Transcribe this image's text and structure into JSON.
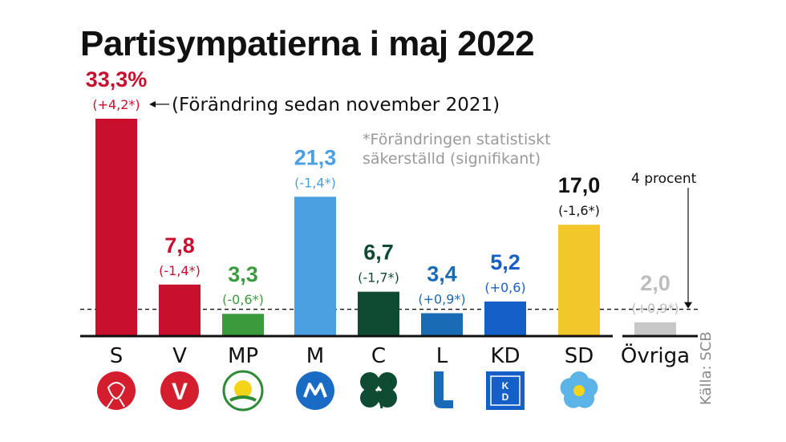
{
  "title": "Partisympatierna i maj 2022",
  "legend_note": "(Förändring sedan november 2021)",
  "significance_note_line1": "*Förändringen statistiskt",
  "significance_note_line2": "säkerställd (signifikant)",
  "threshold_label": "4 procent",
  "source": "Källa: SCB",
  "chart_data": {
    "type": "bar",
    "title": "Partisympatierna i maj 2022",
    "categories": [
      "S",
      "V",
      "MP",
      "M",
      "C",
      "L",
      "KD",
      "SD",
      "Övriga"
    ],
    "values": [
      33.3,
      7.8,
      3.3,
      21.3,
      6.7,
      3.4,
      5.2,
      17.0,
      2.0
    ],
    "value_labels": [
      "33,3%",
      "7,8",
      "3,3",
      "21,3",
      "6,7",
      "3,4",
      "5,2",
      "17,0",
      "2,0"
    ],
    "change_labels": [
      "(+4,2*)",
      "(-1,4*)",
      "(-0,6*)",
      "(-1,4*)",
      "(-1,7*)",
      "(+0,9*)",
      "(+0,6)",
      "(-1,6*)",
      "(+0,9*)"
    ],
    "colors": [
      "#c8102e",
      "#c8102e",
      "#3a9b3d",
      "#4aa0e0",
      "#0f4a32",
      "#1a6bb5",
      "#1560c8",
      "#f2c72a",
      "#c8c8c8"
    ],
    "label_colors": [
      "#c8102e",
      "#c8102e",
      "#3a9b3d",
      "#4aa0e0",
      "#0f4a32",
      "#1a6bb5",
      "#1560c8",
      "#111111",
      "#bdbdbd"
    ],
    "logo_icons": [
      "s-rose-icon",
      "v-carnation-icon",
      "mp-dandelion-icon",
      "m-logo-icon",
      "c-clover-icon",
      "l-logo-icon",
      "kd-logo-icon",
      "sd-flower-icon",
      ""
    ],
    "threshold": 4,
    "ylim": [
      0,
      33.3
    ]
  }
}
